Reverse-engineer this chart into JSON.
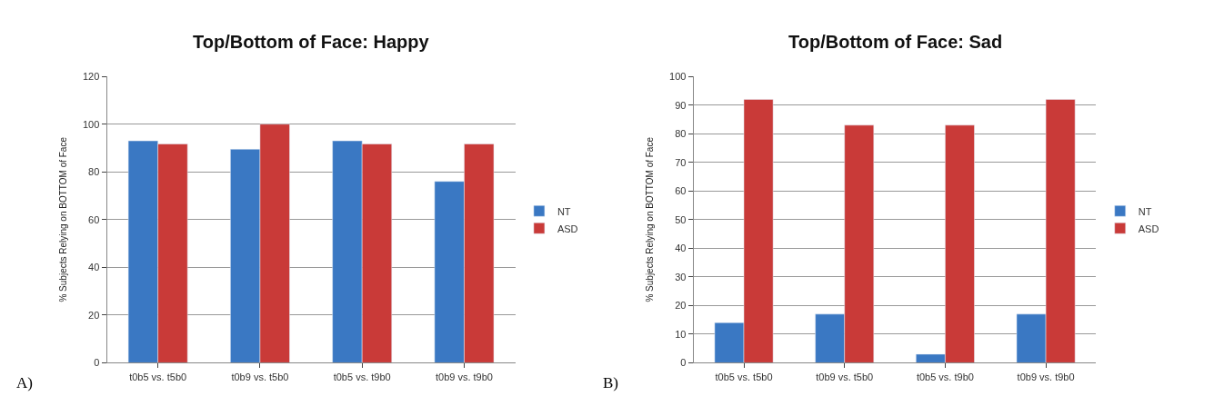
{
  "chart_data": [
    {
      "type": "bar",
      "title": "Top/Bottom of Face: Happy",
      "ylabel": "% Subjects Relying on BOTTOM of Face",
      "categories": [
        "t0b5 vs. t5b0",
        "t0b9 vs. t5b0",
        "t0b5 vs. t9b0",
        "t0b9 vs. t9b0"
      ],
      "series": [
        {
          "name": "NT",
          "color": "#3a78c3",
          "values": [
            93,
            89.5,
            93,
            76
          ]
        },
        {
          "name": "ASD",
          "color": "#c93a38",
          "values": [
            91.7,
            100,
            91.7,
            91.7
          ]
        }
      ],
      "ylim": [
        0,
        120
      ],
      "yticks": [
        0,
        20,
        40,
        60,
        80,
        100,
        120
      ],
      "grid": "y",
      "legend": "right",
      "annotations": [
        "A)"
      ]
    },
    {
      "type": "bar",
      "title": "Top/Bottom of Face: Sad",
      "ylabel": "% Subjects Relying on BOTTOM of Face",
      "categories": [
        "t0b5 vs. t5b0",
        "t0b9 vs. t5b0",
        "t0b5 vs. t9b0",
        "t0b9 vs. t9b0"
      ],
      "series": [
        {
          "name": "NT",
          "color": "#3a78c3",
          "values": [
            14,
            17,
            3,
            17
          ]
        },
        {
          "name": "ASD",
          "color": "#c93a38",
          "values": [
            92,
            83,
            83,
            92
          ]
        }
      ],
      "ylim": [
        0,
        100
      ],
      "yticks": [
        0,
        10,
        20,
        30,
        40,
        50,
        60,
        70,
        80,
        90,
        100
      ],
      "grid": "y",
      "legend": "right",
      "annotations": [
        "B)"
      ]
    }
  ]
}
